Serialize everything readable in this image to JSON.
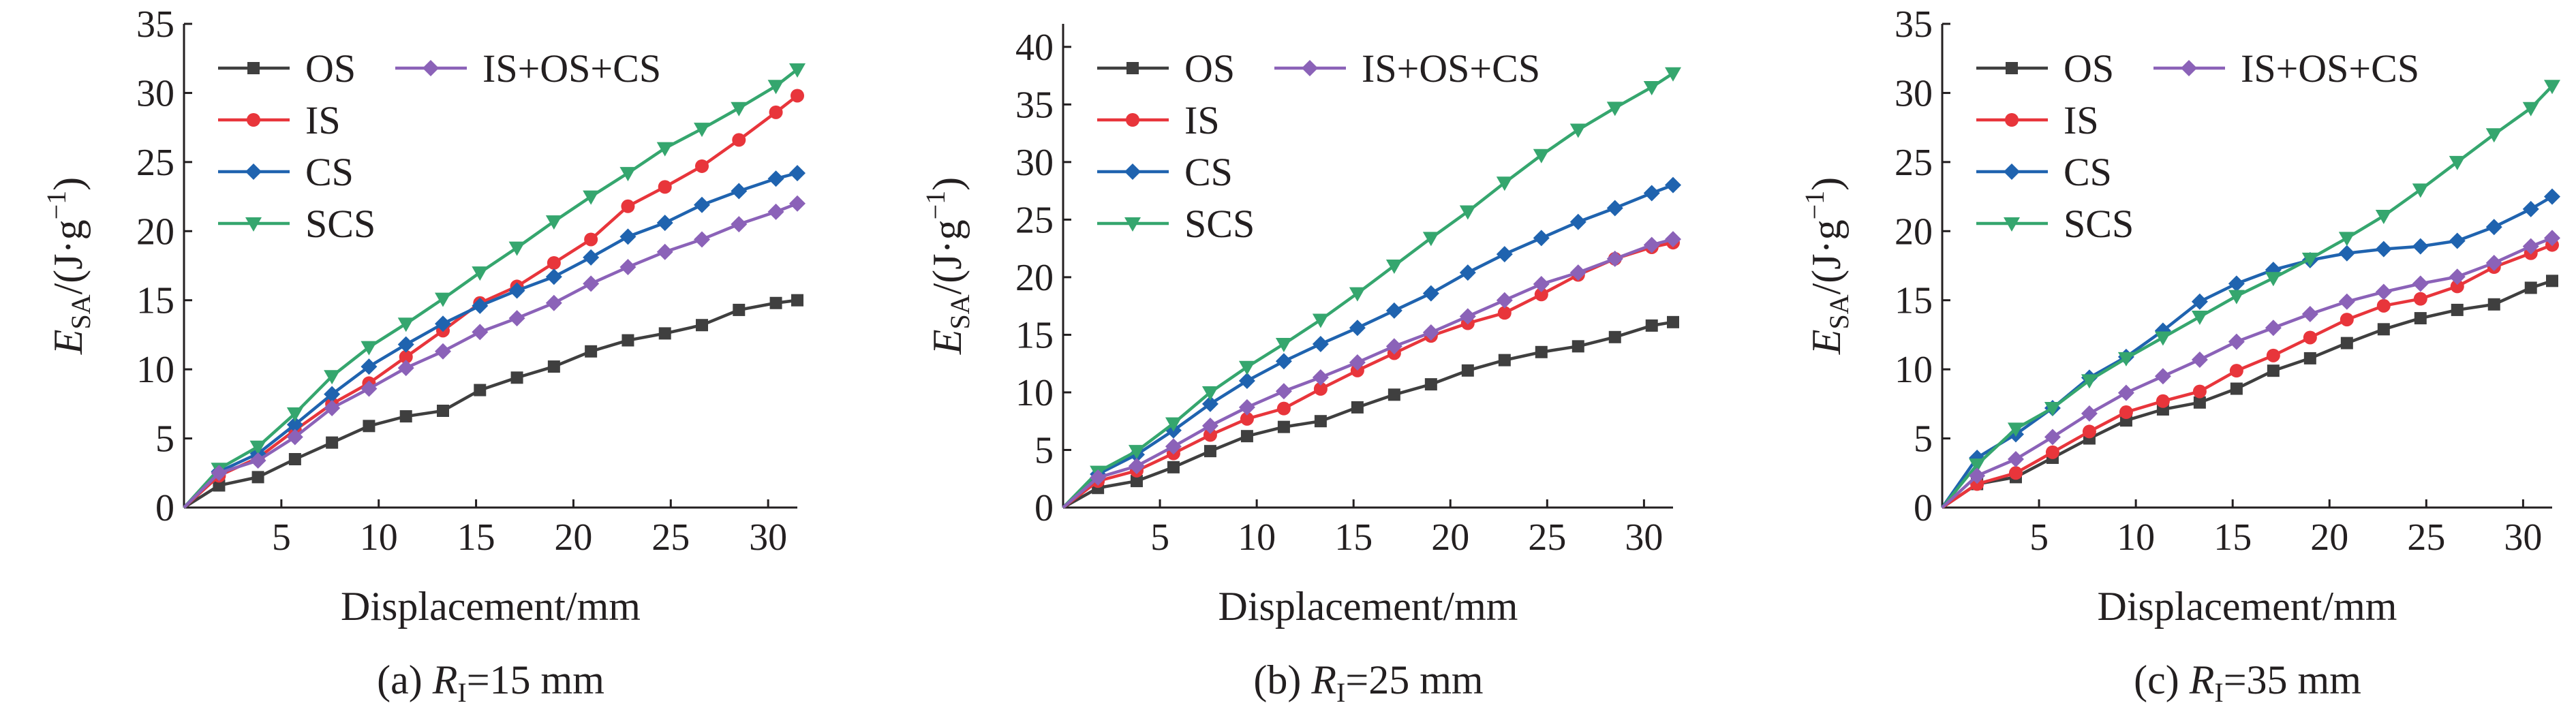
{
  "chart_data": [
    {
      "type": "line",
      "panel": "a",
      "caption": {
        "prefix": "(a) ",
        "var": "R",
        "sub": "I",
        "suffix": "=15 mm"
      },
      "xlabel": "Displacement/mm",
      "ylabel": {
        "var": "E",
        "sub": "SA",
        "unit_open": "/(J·g",
        "sup": "−1",
        "unit_close": ")"
      },
      "xlim": [
        0,
        31.5
      ],
      "ylim": [
        0,
        35
      ],
      "xticks": [
        5,
        10,
        15,
        20,
        25,
        30
      ],
      "yticks": [
        0,
        5,
        10,
        15,
        20,
        25,
        30,
        35
      ],
      "x": [
        0,
        1.8,
        3.8,
        5.7,
        7.6,
        9.5,
        11.4,
        13.3,
        15.2,
        17.1,
        19,
        20.9,
        22.8,
        24.7,
        26.6,
        28.5,
        30.4,
        31.5
      ],
      "series": [
        {
          "name": "OS",
          "color": "#3f3f3f",
          "marker": "square",
          "values": [
            0,
            1.6,
            2.2,
            3.5,
            4.7,
            5.9,
            6.6,
            7.0,
            8.5,
            9.4,
            10.2,
            11.3,
            12.1,
            12.6,
            13.2,
            14.3,
            14.8,
            15.0
          ]
        },
        {
          "name": "IS",
          "color": "#e8353b",
          "marker": "circle",
          "values": [
            0,
            2.3,
            3.6,
            5.6,
            7.5,
            9.0,
            10.9,
            12.8,
            14.8,
            16.0,
            17.7,
            19.4,
            21.8,
            23.2,
            24.7,
            26.6,
            28.6,
            29.8
          ]
        },
        {
          "name": "CS",
          "color": "#1f63af",
          "marker": "diamond",
          "values": [
            0,
            2.6,
            3.9,
            6.0,
            8.2,
            10.2,
            11.8,
            13.3,
            14.6,
            15.7,
            16.7,
            18.1,
            19.6,
            20.6,
            21.9,
            22.9,
            23.8,
            24.2
          ]
        },
        {
          "name": "SCS",
          "color": "#35a66e",
          "marker": "triangle-down",
          "values": [
            0,
            2.8,
            4.4,
            6.8,
            9.5,
            11.6,
            13.3,
            15.1,
            17.0,
            18.8,
            20.7,
            22.5,
            24.2,
            26.0,
            27.4,
            28.9,
            30.5,
            31.7
          ]
        },
        {
          "name": "IS+OS+CS",
          "color": "#8b62b8",
          "marker": "diamond",
          "values": [
            0,
            2.5,
            3.4,
            5.1,
            7.2,
            8.6,
            10.1,
            11.3,
            12.7,
            13.7,
            14.8,
            16.2,
            17.4,
            18.5,
            19.4,
            20.5,
            21.4,
            22.0
          ]
        }
      ],
      "legend_position": "top-left"
    },
    {
      "type": "line",
      "panel": "b",
      "caption": {
        "prefix": "(b) ",
        "var": "R",
        "sub": "I",
        "suffix": "=25 mm"
      },
      "xlabel": "Displacement/mm",
      "ylabel": {
        "var": "E",
        "sub": "SA",
        "unit_open": "/(J·g",
        "sup": "−1",
        "unit_close": ")"
      },
      "xlim": [
        0,
        31.5
      ],
      "ylim": [
        0,
        42
      ],
      "xticks": [
        5,
        10,
        15,
        20,
        25,
        30
      ],
      "yticks": [
        0,
        5,
        10,
        15,
        20,
        25,
        30,
        35,
        40
      ],
      "x": [
        0,
        1.8,
        3.8,
        5.7,
        7.6,
        9.5,
        11.4,
        13.3,
        15.2,
        17.1,
        19,
        20.9,
        22.8,
        24.7,
        26.6,
        28.5,
        30.4,
        31.5
      ],
      "series": [
        {
          "name": "OS",
          "color": "#3f3f3f",
          "marker": "square",
          "values": [
            0,
            1.7,
            2.3,
            3.5,
            4.9,
            6.2,
            7.0,
            7.5,
            8.7,
            9.8,
            10.7,
            11.9,
            12.8,
            13.5,
            14.0,
            14.8,
            15.8,
            16.1
          ]
        },
        {
          "name": "IS",
          "color": "#e8353b",
          "marker": "circle",
          "values": [
            0,
            2.3,
            3.2,
            4.7,
            6.3,
            7.7,
            8.6,
            10.3,
            11.9,
            13.4,
            14.9,
            16.0,
            16.9,
            18.5,
            20.2,
            21.6,
            22.6,
            23.0
          ]
        },
        {
          "name": "CS",
          "color": "#1f63af",
          "marker": "diamond",
          "values": [
            0,
            2.9,
            4.6,
            6.7,
            9.0,
            11.0,
            12.7,
            14.2,
            15.6,
            17.1,
            18.6,
            20.4,
            22.0,
            23.4,
            24.8,
            26.0,
            27.3,
            28.0
          ]
        },
        {
          "name": "SCS",
          "color": "#35a66e",
          "marker": "triangle-down",
          "values": [
            0,
            3.1,
            4.9,
            7.3,
            10.0,
            12.2,
            14.2,
            16.3,
            18.6,
            21.0,
            23.4,
            25.7,
            28.2,
            30.6,
            32.8,
            34.7,
            36.5,
            37.7
          ]
        },
        {
          "name": "IS+OS+CS",
          "color": "#8b62b8",
          "marker": "diamond",
          "values": [
            0,
            2.6,
            3.6,
            5.3,
            7.1,
            8.7,
            10.1,
            11.3,
            12.6,
            14.0,
            15.2,
            16.6,
            18.0,
            19.4,
            20.4,
            21.6,
            22.8,
            23.3
          ]
        }
      ],
      "legend_position": "top-left"
    },
    {
      "type": "line",
      "panel": "c",
      "caption": {
        "prefix": "(c) ",
        "var": "R",
        "sub": "I",
        "suffix": "=35 mm"
      },
      "xlabel": "Displacement/mm",
      "ylabel": {
        "var": "E",
        "sub": "SA",
        "unit_open": "/(J·g",
        "sup": "−1",
        "unit_close": ")"
      },
      "xlim": [
        0,
        31.5
      ],
      "ylim": [
        0,
        35
      ],
      "xticks": [
        5,
        10,
        15,
        20,
        25,
        30
      ],
      "yticks": [
        0,
        5,
        10,
        15,
        20,
        25,
        30,
        35
      ],
      "x": [
        0,
        1.8,
        3.8,
        5.7,
        7.6,
        9.5,
        11.4,
        13.3,
        15.2,
        17.1,
        19,
        20.9,
        22.8,
        24.7,
        26.6,
        28.5,
        30.4,
        31.5
      ],
      "series": [
        {
          "name": "OS",
          "color": "#3f3f3f",
          "marker": "square",
          "values": [
            0,
            1.7,
            2.2,
            3.6,
            5.0,
            6.3,
            7.1,
            7.6,
            8.6,
            9.9,
            10.8,
            11.9,
            12.9,
            13.7,
            14.3,
            14.7,
            15.9,
            16.4
          ]
        },
        {
          "name": "IS",
          "color": "#e8353b",
          "marker": "circle",
          "values": [
            0,
            1.7,
            2.5,
            4.0,
            5.5,
            6.9,
            7.7,
            8.4,
            9.9,
            11.0,
            12.3,
            13.6,
            14.6,
            15.1,
            16.0,
            17.4,
            18.4,
            19.0
          ]
        },
        {
          "name": "CS",
          "color": "#1f63af",
          "marker": "diamond",
          "values": [
            0,
            3.6,
            5.3,
            7.2,
            9.4,
            10.9,
            12.8,
            14.9,
            16.2,
            17.2,
            17.9,
            18.4,
            18.7,
            18.9,
            19.3,
            20.3,
            21.6,
            22.5
          ]
        },
        {
          "name": "SCS",
          "color": "#35a66e",
          "marker": "triangle-down",
          "values": [
            0,
            3.1,
            5.7,
            7.2,
            9.2,
            10.8,
            12.3,
            13.8,
            15.3,
            16.6,
            18.0,
            19.5,
            21.1,
            23.0,
            25.0,
            27.0,
            28.9,
            30.5
          ]
        },
        {
          "name": "IS+OS+CS",
          "color": "#8b62b8",
          "marker": "diamond",
          "values": [
            0,
            2.3,
            3.5,
            5.1,
            6.8,
            8.3,
            9.5,
            10.7,
            12.0,
            13.0,
            14.0,
            14.9,
            15.6,
            16.2,
            16.7,
            17.7,
            18.9,
            19.5
          ]
        }
      ],
      "legend_position": "top-left"
    }
  ]
}
